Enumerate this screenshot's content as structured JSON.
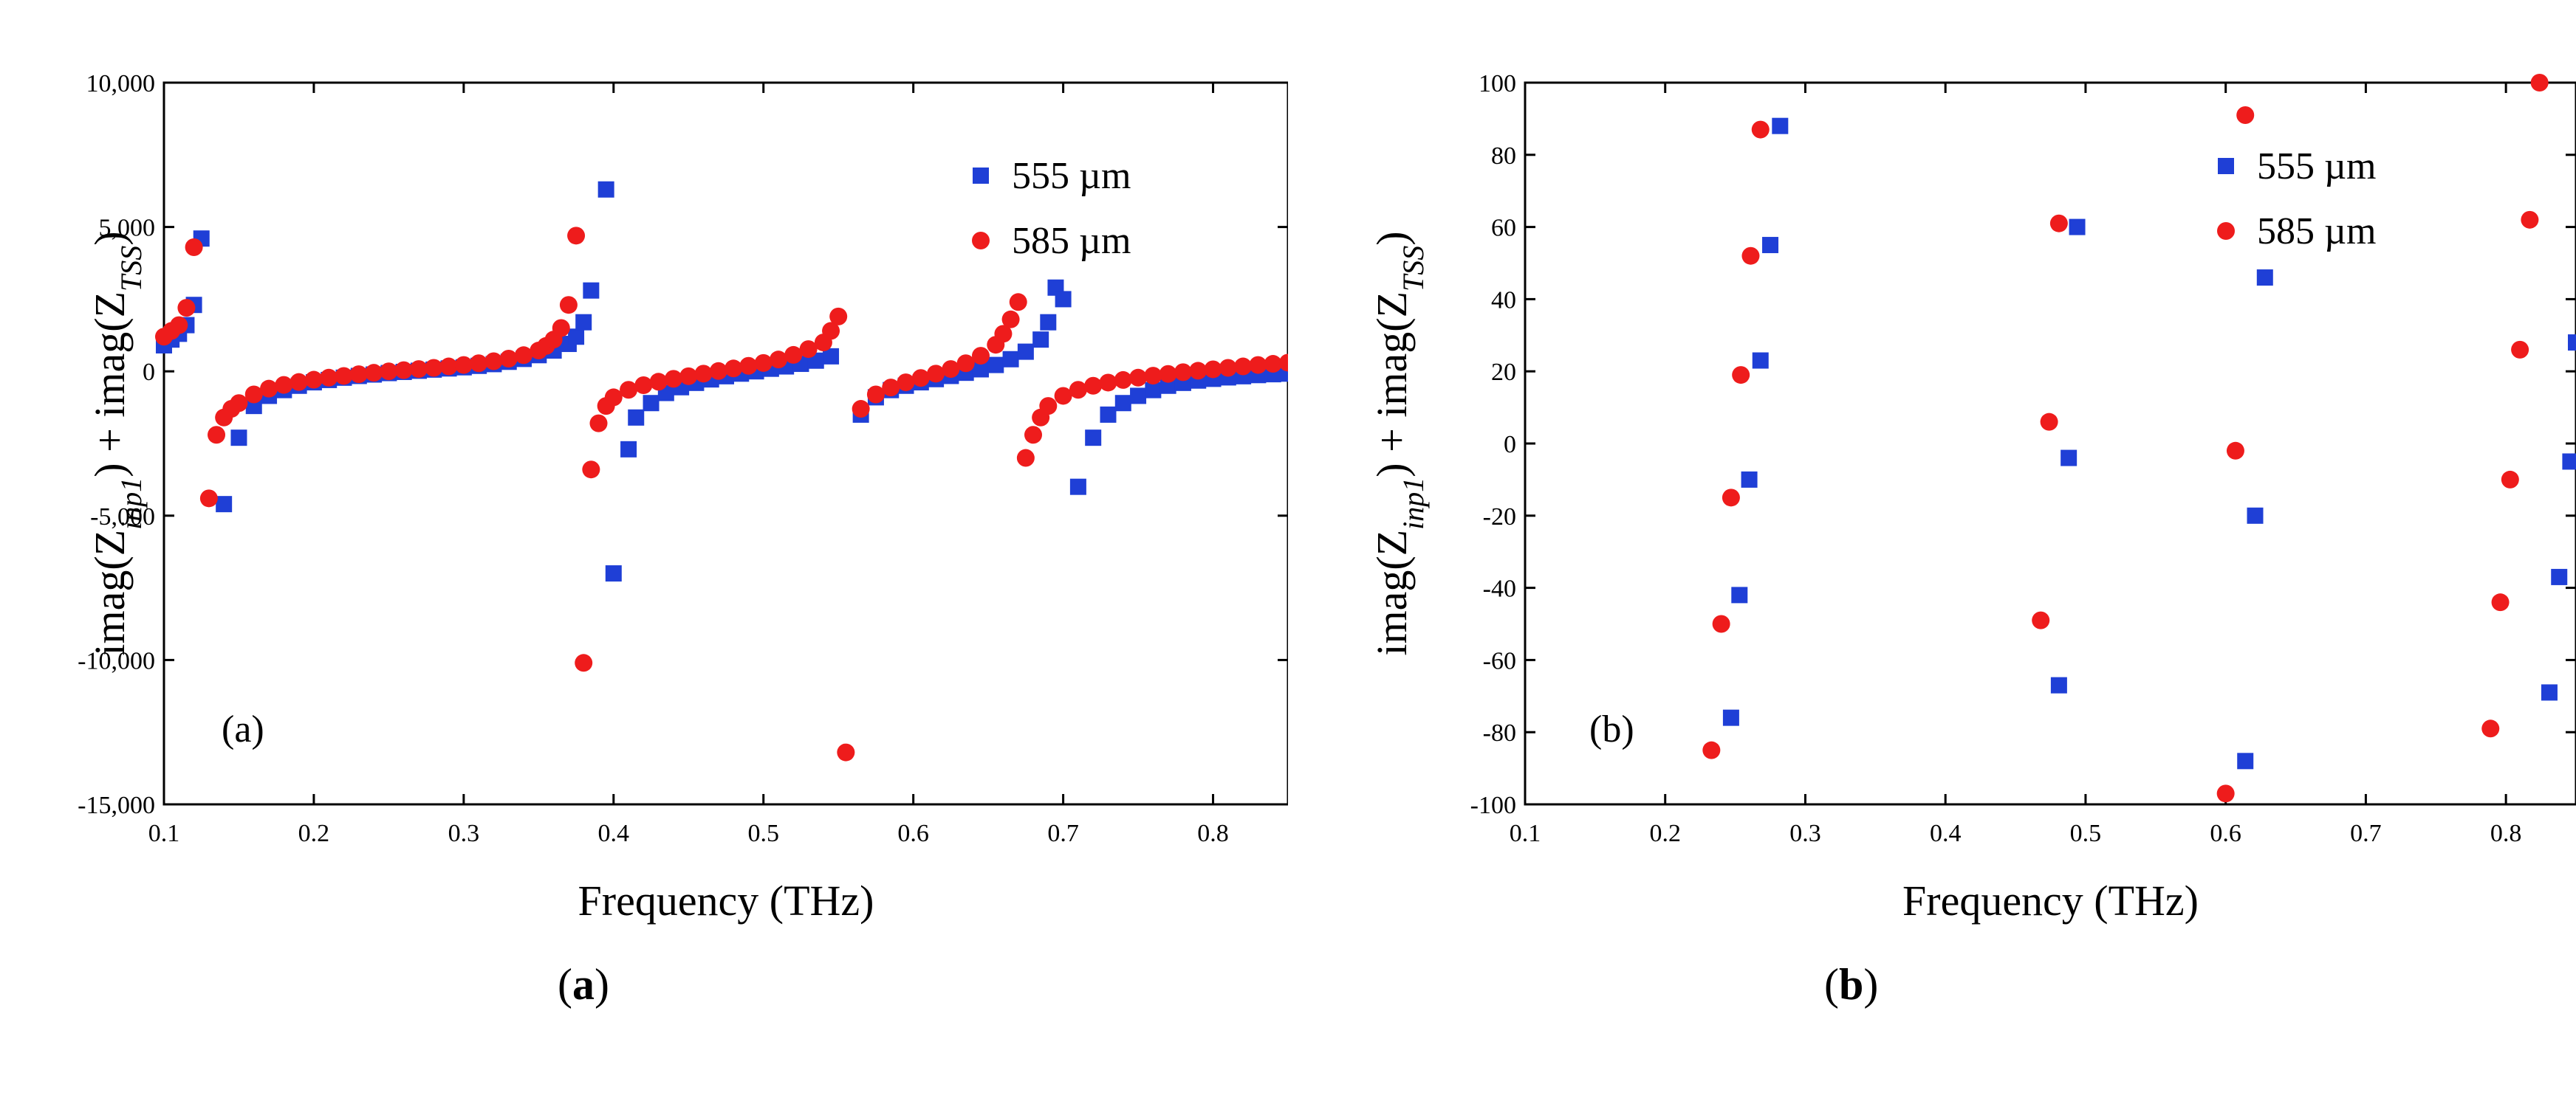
{
  "panels": {
    "a": {
      "caption_open": "(",
      "caption_letter": "a",
      "caption_close": ")"
    },
    "b": {
      "caption_open": "(",
      "caption_letter": "b",
      "caption_close": ")"
    }
  },
  "colors": {
    "series_555": "#1f3fd6",
    "series_585": "#ee1c1c"
  },
  "chart_data": [
    {
      "id": "a",
      "type": "scatter",
      "panel_label": "(a)",
      "xlabel": "Frequency (THz)",
      "ylabel_parts": {
        "pre": "imag(Z",
        "sub1": "inp1",
        "mid": ") + imag(Z",
        "sub2": "TSS",
        "post": ")"
      },
      "xlim": [
        0.1,
        0.85
      ],
      "ylim": [
        -15000,
        10000
      ],
      "xticks": [
        0.1,
        0.2,
        0.3,
        0.4,
        0.5,
        0.6,
        0.7,
        0.8
      ],
      "xtick_labels": [
        "0.1",
        "0.2",
        "0.3",
        "0.4",
        "0.5",
        "0.6",
        "0.7",
        "0.8"
      ],
      "yticks": [
        -15000,
        -10000,
        -5000,
        0,
        5000,
        10000
      ],
      "ytick_labels": [
        "-15,000",
        "-10,000",
        "-5,000",
        "0",
        "5,000",
        "10,000"
      ],
      "legend_position": "top-right",
      "series": [
        {
          "name": "555 µm",
          "marker": "square",
          "color": "#1f3fd6",
          "x": [
            0.1,
            0.105,
            0.11,
            0.115,
            0.12,
            0.125,
            0.14,
            0.15,
            0.16,
            0.17,
            0.18,
            0.19,
            0.2,
            0.21,
            0.22,
            0.23,
            0.24,
            0.25,
            0.26,
            0.27,
            0.28,
            0.29,
            0.3,
            0.31,
            0.32,
            0.33,
            0.34,
            0.35,
            0.36,
            0.37,
            0.375,
            0.38,
            0.385,
            0.395,
            0.4,
            0.41,
            0.415,
            0.425,
            0.435,
            0.445,
            0.455,
            0.465,
            0.475,
            0.485,
            0.495,
            0.505,
            0.515,
            0.525,
            0.535,
            0.545,
            0.565,
            0.575,
            0.585,
            0.595,
            0.605,
            0.615,
            0.625,
            0.635,
            0.645,
            0.655,
            0.665,
            0.675,
            0.685,
            0.69,
            0.695,
            0.7,
            0.71,
            0.72,
            0.73,
            0.74,
            0.75,
            0.76,
            0.77,
            0.78,
            0.79,
            0.8,
            0.81,
            0.82,
            0.83,
            0.84,
            0.85
          ],
          "y": [
            900,
            1100,
            1300,
            1600,
            2300,
            4600,
            -4600,
            -2300,
            -1200,
            -850,
            -650,
            -500,
            -380,
            -300,
            -220,
            -160,
            -110,
            -60,
            -20,
            20,
            60,
            100,
            140,
            190,
            250,
            330,
            430,
            560,
            720,
            950,
            1200,
            1700,
            2800,
            6300,
            -7000,
            -2700,
            -1600,
            -1100,
            -750,
            -550,
            -400,
            -280,
            -170,
            -80,
            0,
            90,
            170,
            260,
            370,
            520,
            -1500,
            -900,
            -650,
            -500,
            -380,
            -270,
            -160,
            -50,
            70,
            220,
            420,
            680,
            1100,
            1700,
            2900,
            2500,
            -4000,
            -2300,
            -1500,
            -1100,
            -850,
            -650,
            -500,
            -400,
            -320,
            -260,
            -210,
            -170,
            -130,
            -100,
            -80
          ]
        },
        {
          "name": "585 µm",
          "marker": "circle",
          "color": "#ee1c1c",
          "x": [
            0.1,
            0.105,
            0.11,
            0.115,
            0.12,
            0.13,
            0.135,
            0.14,
            0.145,
            0.15,
            0.16,
            0.17,
            0.18,
            0.19,
            0.2,
            0.21,
            0.22,
            0.23,
            0.24,
            0.25,
            0.26,
            0.27,
            0.28,
            0.29,
            0.3,
            0.31,
            0.32,
            0.33,
            0.34,
            0.35,
            0.355,
            0.36,
            0.365,
            0.37,
            0.375,
            0.38,
            0.385,
            0.39,
            0.395,
            0.4,
            0.41,
            0.42,
            0.43,
            0.44,
            0.45,
            0.46,
            0.47,
            0.48,
            0.49,
            0.5,
            0.51,
            0.52,
            0.53,
            0.54,
            0.545,
            0.55,
            0.555,
            0.565,
            0.575,
            0.585,
            0.595,
            0.605,
            0.615,
            0.625,
            0.635,
            0.645,
            0.655,
            0.66,
            0.665,
            0.67,
            0.675,
            0.68,
            0.685,
            0.69,
            0.7,
            0.71,
            0.72,
            0.73,
            0.74,
            0.75,
            0.76,
            0.77,
            0.78,
            0.79,
            0.8,
            0.81,
            0.82,
            0.83,
            0.84,
            0.85
          ],
          "y": [
            1200,
            1400,
            1600,
            2200,
            4300,
            -4400,
            -2200,
            -1600,
            -1300,
            -1100,
            -800,
            -600,
            -470,
            -370,
            -290,
            -220,
            -160,
            -100,
            -50,
            0,
            40,
            80,
            120,
            170,
            220,
            280,
            350,
            440,
            560,
            720,
            880,
            1100,
            1500,
            2300,
            4700,
            -10100,
            -3400,
            -1800,
            -1200,
            -900,
            -640,
            -480,
            -360,
            -260,
            -170,
            -80,
            10,
            100,
            190,
            290,
            410,
            570,
            770,
            1000,
            1400,
            1900,
            -13200,
            -1300,
            -800,
            -560,
            -380,
            -230,
            -80,
            80,
            280,
            540,
            920,
            1300,
            1800,
            2400,
            -3000,
            -2200,
            -1600,
            -1200,
            -850,
            -640,
            -500,
            -390,
            -300,
            -220,
            -150,
            -90,
            -30,
            20,
            70,
            120,
            170,
            220,
            260,
            300
          ]
        }
      ]
    },
    {
      "id": "b",
      "type": "scatter",
      "panel_label": "(b)",
      "xlabel": "Frequency (THz)",
      "ylabel_parts": {
        "pre": "imag(Z",
        "sub1": "inp1",
        "mid": ") + imag(Z",
        "sub2": "TSS",
        "post": ")"
      },
      "xlim": [
        0.1,
        0.85
      ],
      "ylim": [
        -100,
        100
      ],
      "xticks": [
        0.1,
        0.2,
        0.3,
        0.4,
        0.5,
        0.6,
        0.7,
        0.8
      ],
      "xtick_labels": [
        "0.1",
        "0.2",
        "0.3",
        "0.4",
        "0.5",
        "0.6",
        "0.7",
        "0.8"
      ],
      "yticks": [
        -100,
        -80,
        -60,
        -40,
        -20,
        0,
        20,
        40,
        60,
        80,
        100
      ],
      "ytick_labels": [
        "-100",
        "-80",
        "-60",
        "-40",
        "-20",
        "0",
        "20",
        "40",
        "60",
        "80",
        "100"
      ],
      "legend_position": "top-right",
      "series": [
        {
          "name": "555 µm",
          "marker": "square",
          "color": "#1f3fd6",
          "x": [
            0.247,
            0.253,
            0.26,
            0.268,
            0.275,
            0.282,
            0.481,
            0.488,
            0.494,
            0.614,
            0.621,
            0.628,
            0.831,
            0.838,
            0.846,
            0.85
          ],
          "y": [
            -76,
            -42,
            -10,
            23,
            55,
            88,
            -67,
            -4,
            60,
            -88,
            -20,
            46,
            -69,
            -37,
            -5,
            28
          ]
        },
        {
          "name": "585 µm",
          "marker": "circle",
          "color": "#ee1c1c",
          "x": [
            0.233,
            0.24,
            0.247,
            0.254,
            0.261,
            0.268,
            0.468,
            0.474,
            0.481,
            0.6,
            0.607,
            0.614,
            0.789,
            0.796,
            0.803,
            0.81,
            0.817,
            0.824
          ],
          "y": [
            -85,
            -50,
            -15,
            19,
            52,
            87,
            -49,
            6,
            61,
            -97,
            -2,
            91,
            -79,
            -44,
            -10,
            26,
            62,
            100
          ]
        }
      ]
    }
  ]
}
